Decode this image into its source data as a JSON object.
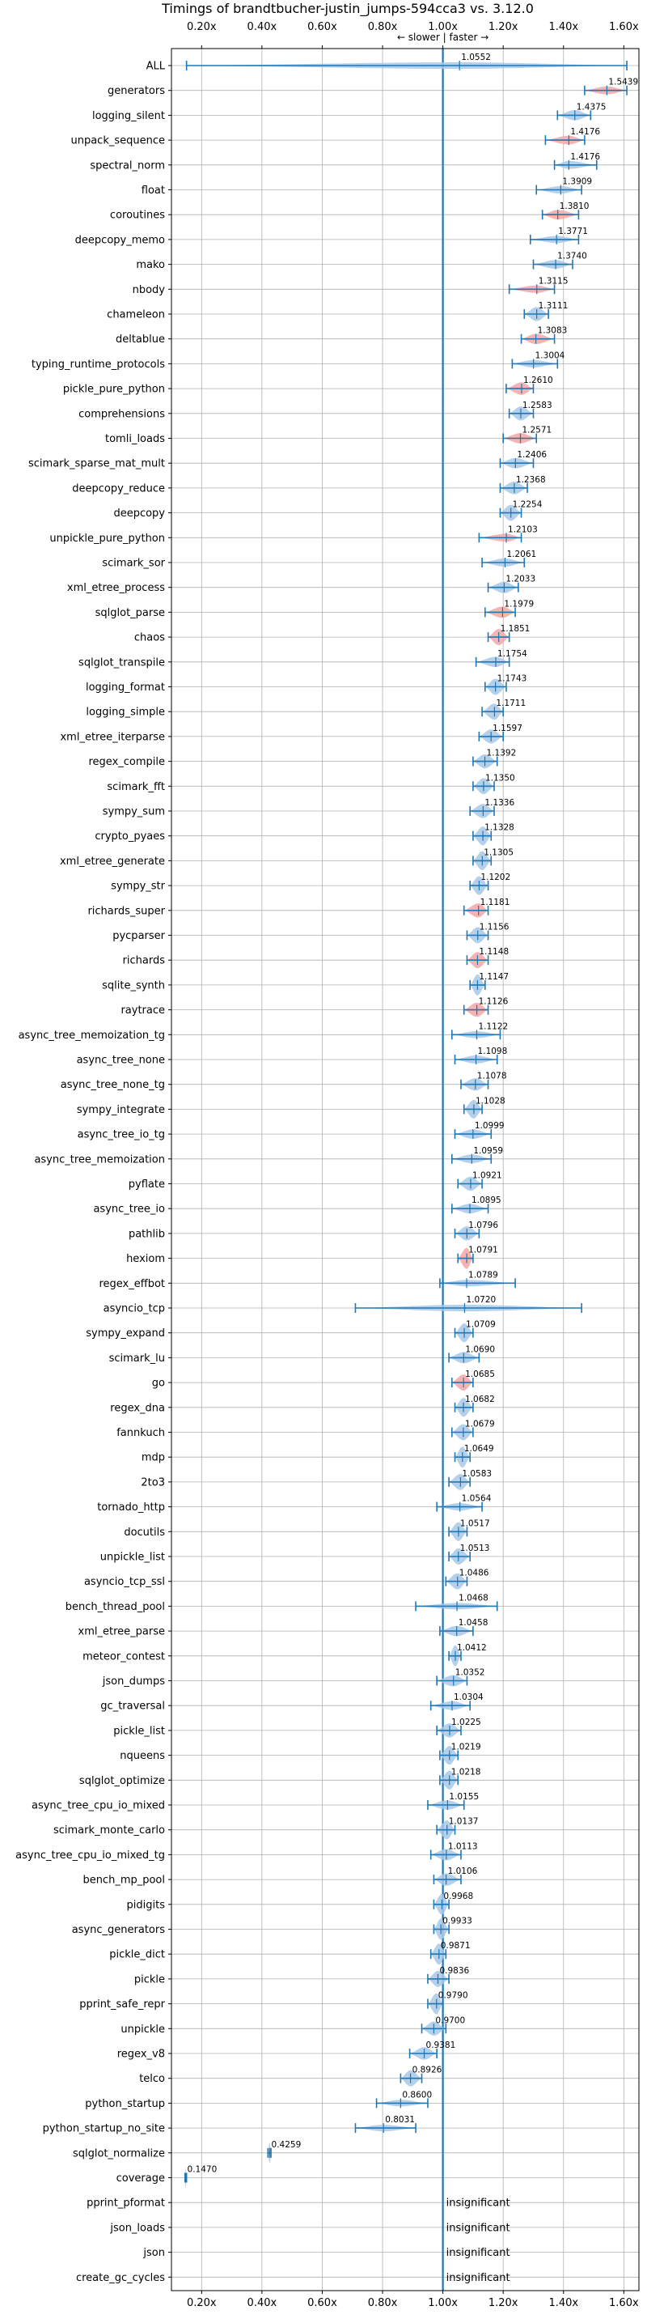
{
  "chart_data": {
    "type": "violin",
    "title": "Timings of brandtbucher-justin_jumps-594cca3 vs. 3.12.0",
    "annotation": "← slower | faster →",
    "xlim": [
      0.1,
      1.65
    ],
    "xticks": [
      0.2,
      0.4,
      0.6,
      0.8,
      1.0,
      1.2,
      1.4,
      1.6
    ],
    "xtick_labels": [
      "0.20x",
      "0.40x",
      "0.60x",
      "0.80x",
      "1.00x",
      "1.20x",
      "1.40x",
      "1.60x"
    ],
    "reference_line": 1.0,
    "grid": true,
    "colors": {
      "faster": "#a8c8e8",
      "slower": "#f4a6a6",
      "marker": "#1f77b4",
      "grid": "#b0b0b0"
    },
    "insignificant_text": "insignificant",
    "benchmarks": [
      {
        "name": "ALL",
        "value": 1.0552,
        "label": "1.0552",
        "min": 0.15,
        "max": 1.61,
        "color": "faster"
      },
      {
        "name": "generators",
        "value": 1.5439,
        "label": "1.5439",
        "min": 1.47,
        "max": 1.61,
        "color": "slower"
      },
      {
        "name": "logging_silent",
        "value": 1.4375,
        "label": "1.4375",
        "min": 1.38,
        "max": 1.49,
        "color": "faster"
      },
      {
        "name": "unpack_sequence",
        "value": 1.4176,
        "label": "1.4176",
        "min": 1.34,
        "max": 1.47,
        "color": "slower"
      },
      {
        "name": "spectral_norm",
        "value": 1.4176,
        "label": "1.4176",
        "min": 1.37,
        "max": 1.51,
        "color": "faster"
      },
      {
        "name": "float",
        "value": 1.3909,
        "label": "1.3909",
        "min": 1.31,
        "max": 1.46,
        "color": "faster"
      },
      {
        "name": "coroutines",
        "value": 1.381,
        "label": "1.3810",
        "min": 1.33,
        "max": 1.45,
        "color": "slower"
      },
      {
        "name": "deepcopy_memo",
        "value": 1.3771,
        "label": "1.3771",
        "min": 1.29,
        "max": 1.45,
        "color": "faster"
      },
      {
        "name": "mako",
        "value": 1.374,
        "label": "1.3740",
        "min": 1.3,
        "max": 1.43,
        "color": "faster"
      },
      {
        "name": "nbody",
        "value": 1.3115,
        "label": "1.3115",
        "min": 1.22,
        "max": 1.37,
        "color": "slower"
      },
      {
        "name": "chameleon",
        "value": 1.3111,
        "label": "1.3111",
        "min": 1.27,
        "max": 1.35,
        "color": "faster"
      },
      {
        "name": "deltablue",
        "value": 1.3083,
        "label": "1.3083",
        "min": 1.26,
        "max": 1.37,
        "color": "slower"
      },
      {
        "name": "typing_runtime_protocols",
        "value": 1.3004,
        "label": "1.3004",
        "min": 1.23,
        "max": 1.38,
        "color": "faster"
      },
      {
        "name": "pickle_pure_python",
        "value": 1.261,
        "label": "1.2610",
        "min": 1.21,
        "max": 1.3,
        "color": "slower"
      },
      {
        "name": "comprehensions",
        "value": 1.2583,
        "label": "1.2583",
        "min": 1.22,
        "max": 1.3,
        "color": "faster"
      },
      {
        "name": "tomli_loads",
        "value": 1.2571,
        "label": "1.2571",
        "min": 1.2,
        "max": 1.31,
        "color": "slower"
      },
      {
        "name": "scimark_sparse_mat_mult",
        "value": 1.2406,
        "label": "1.2406",
        "min": 1.19,
        "max": 1.3,
        "color": "faster"
      },
      {
        "name": "deepcopy_reduce",
        "value": 1.2368,
        "label": "1.2368",
        "min": 1.19,
        "max": 1.28,
        "color": "faster"
      },
      {
        "name": "deepcopy",
        "value": 1.2254,
        "label": "1.2254",
        "min": 1.19,
        "max": 1.26,
        "color": "faster"
      },
      {
        "name": "unpickle_pure_python",
        "value": 1.2103,
        "label": "1.2103",
        "min": 1.12,
        "max": 1.26,
        "color": "slower"
      },
      {
        "name": "scimark_sor",
        "value": 1.2061,
        "label": "1.2061",
        "min": 1.13,
        "max": 1.27,
        "color": "faster"
      },
      {
        "name": "xml_etree_process",
        "value": 1.2033,
        "label": "1.2033",
        "min": 1.15,
        "max": 1.25,
        "color": "faster"
      },
      {
        "name": "sqlglot_parse",
        "value": 1.1979,
        "label": "1.1979",
        "min": 1.14,
        "max": 1.24,
        "color": "slower"
      },
      {
        "name": "chaos",
        "value": 1.1851,
        "label": "1.1851",
        "min": 1.15,
        "max": 1.22,
        "color": "slower"
      },
      {
        "name": "sqlglot_transpile",
        "value": 1.1754,
        "label": "1.1754",
        "min": 1.11,
        "max": 1.22,
        "color": "faster"
      },
      {
        "name": "logging_format",
        "value": 1.1743,
        "label": "1.1743",
        "min": 1.14,
        "max": 1.21,
        "color": "faster"
      },
      {
        "name": "logging_simple",
        "value": 1.1711,
        "label": "1.1711",
        "min": 1.13,
        "max": 1.2,
        "color": "faster"
      },
      {
        "name": "xml_etree_iterparse",
        "value": 1.1597,
        "label": "1.1597",
        "min": 1.12,
        "max": 1.2,
        "color": "faster"
      },
      {
        "name": "regex_compile",
        "value": 1.1392,
        "label": "1.1392",
        "min": 1.1,
        "max": 1.18,
        "color": "faster"
      },
      {
        "name": "scimark_fft",
        "value": 1.135,
        "label": "1.1350",
        "min": 1.1,
        "max": 1.17,
        "color": "faster"
      },
      {
        "name": "sympy_sum",
        "value": 1.1336,
        "label": "1.1336",
        "min": 1.09,
        "max": 1.17,
        "color": "faster"
      },
      {
        "name": "crypto_pyaes",
        "value": 1.1328,
        "label": "1.1328",
        "min": 1.1,
        "max": 1.16,
        "color": "faster"
      },
      {
        "name": "xml_etree_generate",
        "value": 1.1305,
        "label": "1.1305",
        "min": 1.1,
        "max": 1.16,
        "color": "faster"
      },
      {
        "name": "sympy_str",
        "value": 1.1202,
        "label": "1.1202",
        "min": 1.09,
        "max": 1.15,
        "color": "faster"
      },
      {
        "name": "richards_super",
        "value": 1.1181,
        "label": "1.1181",
        "min": 1.07,
        "max": 1.15,
        "color": "slower"
      },
      {
        "name": "pycparser",
        "value": 1.1156,
        "label": "1.1156",
        "min": 1.08,
        "max": 1.15,
        "color": "faster"
      },
      {
        "name": "richards",
        "value": 1.1148,
        "label": "1.1148",
        "min": 1.08,
        "max": 1.15,
        "color": "slower"
      },
      {
        "name": "sqlite_synth",
        "value": 1.1147,
        "label": "1.1147",
        "min": 1.09,
        "max": 1.14,
        "color": "faster"
      },
      {
        "name": "raytrace",
        "value": 1.1126,
        "label": "1.1126",
        "min": 1.07,
        "max": 1.15,
        "color": "slower"
      },
      {
        "name": "async_tree_memoization_tg",
        "value": 1.1122,
        "label": "1.1122",
        "min": 1.03,
        "max": 1.19,
        "color": "faster"
      },
      {
        "name": "async_tree_none",
        "value": 1.1098,
        "label": "1.1098",
        "min": 1.04,
        "max": 1.18,
        "color": "faster"
      },
      {
        "name": "async_tree_none_tg",
        "value": 1.1078,
        "label": "1.1078",
        "min": 1.06,
        "max": 1.15,
        "color": "faster"
      },
      {
        "name": "sympy_integrate",
        "value": 1.1028,
        "label": "1.1028",
        "min": 1.07,
        "max": 1.13,
        "color": "faster"
      },
      {
        "name": "async_tree_io_tg",
        "value": 1.0999,
        "label": "1.0999",
        "min": 1.04,
        "max": 1.16,
        "color": "faster"
      },
      {
        "name": "async_tree_memoization",
        "value": 1.0959,
        "label": "1.0959",
        "min": 1.03,
        "max": 1.16,
        "color": "faster"
      },
      {
        "name": "pyflate",
        "value": 1.0921,
        "label": "1.0921",
        "min": 1.05,
        "max": 1.13,
        "color": "faster"
      },
      {
        "name": "async_tree_io",
        "value": 1.0895,
        "label": "1.0895",
        "min": 1.03,
        "max": 1.15,
        "color": "faster"
      },
      {
        "name": "pathlib",
        "value": 1.0796,
        "label": "1.0796",
        "min": 1.04,
        "max": 1.12,
        "color": "faster"
      },
      {
        "name": "hexiom",
        "value": 1.0791,
        "label": "1.0791",
        "min": 1.05,
        "max": 1.1,
        "color": "slower"
      },
      {
        "name": "regex_effbot",
        "value": 1.0789,
        "label": "1.0789",
        "min": 0.99,
        "max": 1.24,
        "color": "faster"
      },
      {
        "name": "asyncio_tcp",
        "value": 1.072,
        "label": "1.0720",
        "min": 0.71,
        "max": 1.46,
        "color": "faster"
      },
      {
        "name": "sympy_expand",
        "value": 1.0709,
        "label": "1.0709",
        "min": 1.04,
        "max": 1.1,
        "color": "faster"
      },
      {
        "name": "scimark_lu",
        "value": 1.069,
        "label": "1.0690",
        "min": 1.02,
        "max": 1.12,
        "color": "faster"
      },
      {
        "name": "go",
        "value": 1.0685,
        "label": "1.0685",
        "min": 1.03,
        "max": 1.1,
        "color": "slower"
      },
      {
        "name": "regex_dna",
        "value": 1.0682,
        "label": "1.0682",
        "min": 1.04,
        "max": 1.1,
        "color": "faster"
      },
      {
        "name": "fannkuch",
        "value": 1.0679,
        "label": "1.0679",
        "min": 1.03,
        "max": 1.1,
        "color": "faster"
      },
      {
        "name": "mdp",
        "value": 1.0649,
        "label": "1.0649",
        "min": 1.04,
        "max": 1.09,
        "color": "faster"
      },
      {
        "name": "2to3",
        "value": 1.0583,
        "label": "1.0583",
        "min": 1.02,
        "max": 1.09,
        "color": "faster"
      },
      {
        "name": "tornado_http",
        "value": 1.0564,
        "label": "1.0564",
        "min": 0.98,
        "max": 1.13,
        "color": "faster"
      },
      {
        "name": "docutils",
        "value": 1.0517,
        "label": "1.0517",
        "min": 1.02,
        "max": 1.08,
        "color": "faster"
      },
      {
        "name": "unpickle_list",
        "value": 1.0513,
        "label": "1.0513",
        "min": 1.02,
        "max": 1.09,
        "color": "faster"
      },
      {
        "name": "asyncio_tcp_ssl",
        "value": 1.0486,
        "label": "1.0486",
        "min": 1.01,
        "max": 1.08,
        "color": "faster"
      },
      {
        "name": "bench_thread_pool",
        "value": 1.0468,
        "label": "1.0468",
        "min": 0.91,
        "max": 1.18,
        "color": "faster"
      },
      {
        "name": "xml_etree_parse",
        "value": 1.0458,
        "label": "1.0458",
        "min": 0.99,
        "max": 1.1,
        "color": "faster"
      },
      {
        "name": "meteor_contest",
        "value": 1.0412,
        "label": "1.0412",
        "min": 1.02,
        "max": 1.06,
        "color": "faster"
      },
      {
        "name": "json_dumps",
        "value": 1.0352,
        "label": "1.0352",
        "min": 0.98,
        "max": 1.08,
        "color": "faster"
      },
      {
        "name": "gc_traversal",
        "value": 1.0304,
        "label": "1.0304",
        "min": 0.96,
        "max": 1.09,
        "color": "faster"
      },
      {
        "name": "pickle_list",
        "value": 1.0225,
        "label": "1.0225",
        "min": 0.98,
        "max": 1.06,
        "color": "faster"
      },
      {
        "name": "nqueens",
        "value": 1.0219,
        "label": "1.0219",
        "min": 0.99,
        "max": 1.05,
        "color": "faster"
      },
      {
        "name": "sqlglot_optimize",
        "value": 1.0218,
        "label": "1.0218",
        "min": 0.99,
        "max": 1.05,
        "color": "faster"
      },
      {
        "name": "async_tree_cpu_io_mixed",
        "value": 1.0155,
        "label": "1.0155",
        "min": 0.95,
        "max": 1.07,
        "color": "faster"
      },
      {
        "name": "scimark_monte_carlo",
        "value": 1.0137,
        "label": "1.0137",
        "min": 0.98,
        "max": 1.04,
        "color": "faster"
      },
      {
        "name": "async_tree_cpu_io_mixed_tg",
        "value": 1.0113,
        "label": "1.0113",
        "min": 0.96,
        "max": 1.06,
        "color": "faster"
      },
      {
        "name": "bench_mp_pool",
        "value": 1.0106,
        "label": "1.0106",
        "min": 0.97,
        "max": 1.06,
        "color": "faster"
      },
      {
        "name": "pidigits",
        "value": 0.9968,
        "label": "0.9968",
        "min": 0.97,
        "max": 1.02,
        "color": "faster"
      },
      {
        "name": "async_generators",
        "value": 0.9933,
        "label": "0.9933",
        "min": 0.97,
        "max": 1.02,
        "color": "faster"
      },
      {
        "name": "pickle_dict",
        "value": 0.9871,
        "label": "0.9871",
        "min": 0.96,
        "max": 1.01,
        "color": "faster"
      },
      {
        "name": "pickle",
        "value": 0.9836,
        "label": "0.9836",
        "min": 0.95,
        "max": 1.02,
        "color": "faster"
      },
      {
        "name": "pprint_safe_repr",
        "value": 0.979,
        "label": "0.9790",
        "min": 0.95,
        "max": 1.0,
        "color": "faster"
      },
      {
        "name": "unpickle",
        "value": 0.97,
        "label": "0.9700",
        "min": 0.93,
        "max": 1.01,
        "color": "faster"
      },
      {
        "name": "regex_v8",
        "value": 0.9381,
        "label": "0.9381",
        "min": 0.89,
        "max": 0.98,
        "color": "faster"
      },
      {
        "name": "telco",
        "value": 0.8926,
        "label": "0.8926",
        "min": 0.86,
        "max": 0.93,
        "color": "faster"
      },
      {
        "name": "python_startup",
        "value": 0.86,
        "label": "0.8600",
        "min": 0.78,
        "max": 0.95,
        "color": "faster"
      },
      {
        "name": "python_startup_no_site",
        "value": 0.8031,
        "label": "0.8031",
        "min": 0.71,
        "max": 0.91,
        "color": "faster"
      },
      {
        "name": "sqlglot_normalize",
        "value": 0.4259,
        "label": "0.4259",
        "min": 0.42,
        "max": 0.43,
        "color": "faster"
      },
      {
        "name": "coverage",
        "value": 0.147,
        "label": "0.1470",
        "min": 0.145,
        "max": 0.15,
        "color": "faster"
      },
      {
        "name": "pprint_pformat",
        "insignificant": true
      },
      {
        "name": "json_loads",
        "insignificant": true
      },
      {
        "name": "json",
        "insignificant": true
      },
      {
        "name": "create_gc_cycles",
        "insignificant": true
      }
    ]
  }
}
